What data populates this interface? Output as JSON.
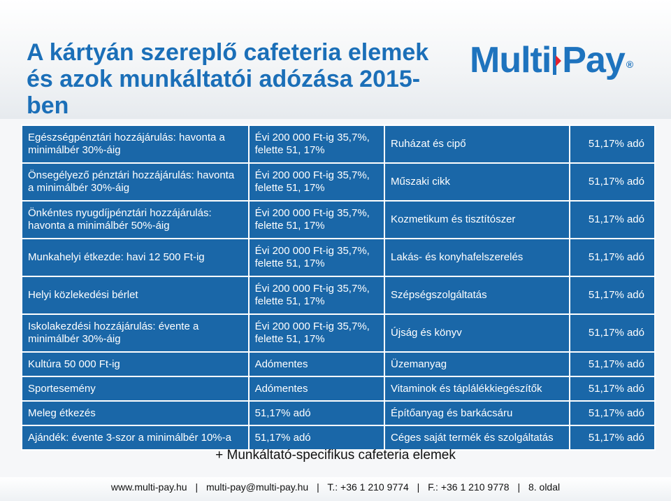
{
  "title": "A kártyán szereplő cafeteria elemek és azok munkáltatói adózása 2015-ben",
  "logo": {
    "text_a": "Multi",
    "text_b": "Pay",
    "reg": "®"
  },
  "rows": [
    {
      "a": "Egészségpénztári hozzájárulás: havonta a minimálbér 30%-áig",
      "b": "Évi 200 000 Ft-ig 35,7%, felette 51, 17%",
      "c": "Ruházat és cipő",
      "d": "51,17% adó"
    },
    {
      "a": "Önsegélyező pénztári hozzájárulás: havonta a minimálbér 30%-áig",
      "b": "Évi 200 000 Ft-ig 35,7%, felette 51, 17%",
      "c": "Műszaki cikk",
      "d": "51,17% adó"
    },
    {
      "a": "Önkéntes nyugdíjpénztári hozzájárulás: havonta a minimálbér 50%-áig",
      "b": "Évi 200 000 Ft-ig 35,7%, felette 51, 17%",
      "c": "Kozmetikum és tisztítószer",
      "d": "51,17% adó"
    },
    {
      "a": "Munkahelyi étkezde: havi 12 500 Ft-ig",
      "b": "Évi 200 000 Ft-ig 35,7%, felette 51, 17%",
      "c": "Lakás- és konyhafelszerelés",
      "d": "51,17% adó"
    },
    {
      "a": "Helyi közlekedési bérlet",
      "b": "Évi 200 000 Ft-ig 35,7%, felette 51, 17%",
      "c": "Szépségszolgáltatás",
      "d": "51,17% adó"
    },
    {
      "a": "Iskolakezdési hozzájárulás: évente a minimálbér 30%-áig",
      "b": "Évi 200 000 Ft-ig 35,7%, felette 51, 17%",
      "c": "Újság és könyv",
      "d": "51,17% adó"
    },
    {
      "a": "Kultúra 50 000 Ft-ig",
      "b": "Adómentes",
      "c": "Üzemanyag",
      "d": "51,17% adó"
    },
    {
      "a": "Sportesemény",
      "b": "Adómentes",
      "c": "Vitaminok és táplálékkiegészítők",
      "d": "51,17% adó"
    },
    {
      "a": "Meleg étkezés",
      "b": "51,17% adó",
      "c": "Építőanyag és barkácsáru",
      "d": "51,17% adó"
    },
    {
      "a": "Ajándék: évente 3-szor a minimálbér 10%-a",
      "b": "51,17% adó",
      "c": "Céges saját termék és szolgáltatás",
      "d": "51,17% adó"
    }
  ],
  "footer": {
    "extra": "+ Munkáltató-specifikus cafeteria elemek",
    "web": "www.multi-pay.hu",
    "email": "multi-pay@multi-pay.hu",
    "tel": "T.: +36 1 210 9774",
    "fax": "F.: +36 1 210 9778",
    "page": "8. oldal",
    "separator": "|"
  },
  "colors": {
    "accent": "#1b6fb8",
    "cell": "#1a67a8"
  }
}
